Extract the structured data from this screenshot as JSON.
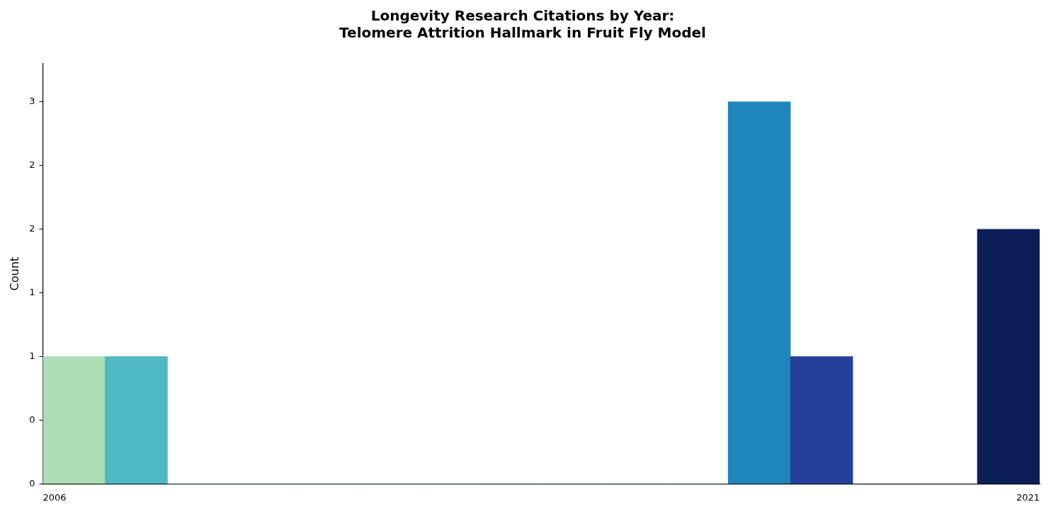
{
  "chart_data": {
    "type": "histogram",
    "title": "Longevity Research Citations by Year:\nTelomere Attrition Hallmark in Fruit Fly Model",
    "y_label": "Count",
    "bins": [
      2006,
      2006.9375,
      2007.875,
      2008.8125,
      2009.75,
      2010.6875,
      2011.625,
      2012.5625,
      2013.5,
      2014.4375,
      2015.375,
      2016.3125,
      2017.25,
      2018.1875,
      2019.125,
      2020.0625,
      2021
    ],
    "counts": [
      1,
      1,
      0,
      0,
      0,
      0,
      0,
      0,
      0,
      0,
      0,
      3,
      1,
      0,
      0,
      2
    ],
    "colors": [
      "#abdeb6",
      "#4fb9c4",
      "#3aa7c3",
      "#3aa7c3",
      "#3aa7c3",
      "#3aa7c3",
      "#3aa7c3",
      "#2b96c0",
      "#2b96c0",
      "#2b96c0",
      "#2b96c0",
      "#1f86bb",
      "#24419a",
      "#1a3080",
      "#12266b",
      "#0b1e58"
    ],
    "xlim": [
      2006,
      2021
    ],
    "xticks": [
      2006,
      2021
    ],
    "ylim": [
      0,
      3.3
    ],
    "yticks": [
      {
        "value": 0,
        "label": "0"
      },
      {
        "value": 0.5,
        "label": "0"
      },
      {
        "value": 1,
        "label": "1"
      },
      {
        "value": 1.5,
        "label": "1"
      },
      {
        "value": 2,
        "label": "2"
      },
      {
        "value": 2.5,
        "label": "2"
      },
      {
        "value": 3,
        "label": "3"
      }
    ],
    "grid": false
  }
}
